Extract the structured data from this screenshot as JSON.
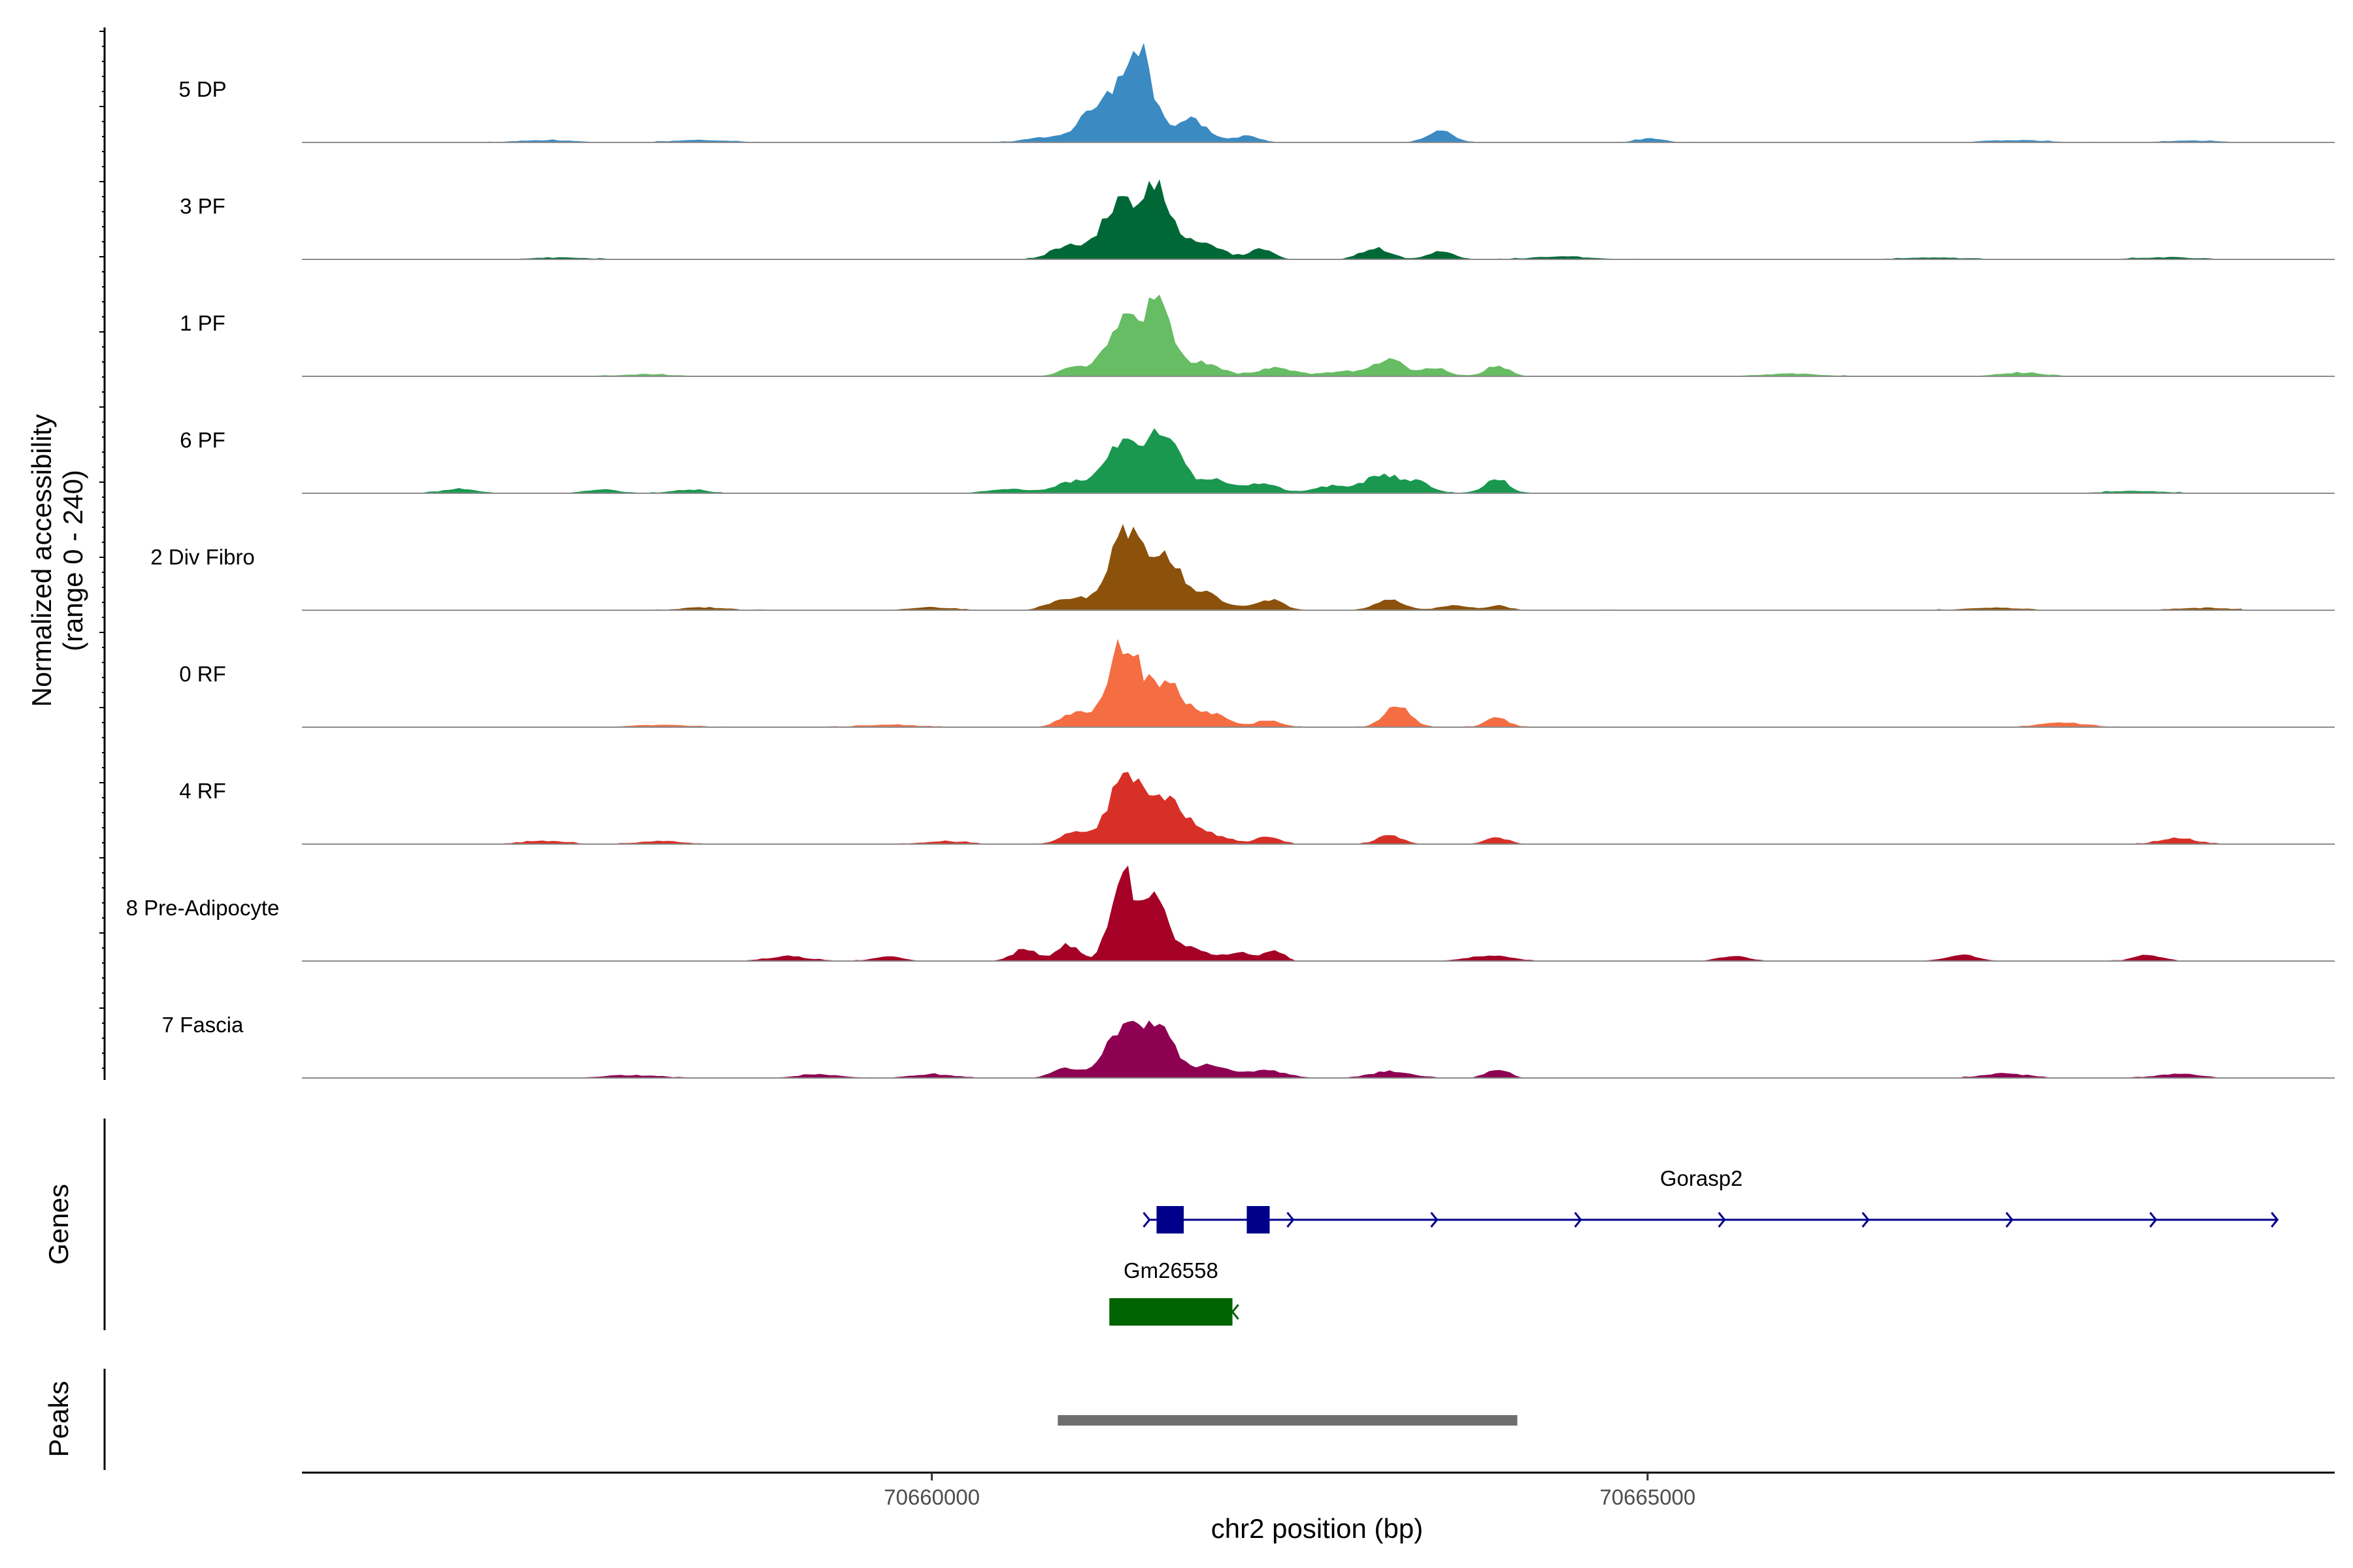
{
  "chart_data": {
    "type": "area",
    "title": "",
    "ylabel": "Normalized accessibility",
    "ylabel_range": "(range 0 - 240)",
    "xlabel": "chr2 position (bp)",
    "xlim": [
      70655600,
      70669800
    ],
    "ylim": [
      0,
      240
    ],
    "x_ticks": [
      {
        "value": 70660000,
        "label": "70660000"
      },
      {
        "value": 70665000,
        "label": "70665000"
      }
    ],
    "tracks": [
      {
        "name": "5 DP",
        "color": "#3B8BC2",
        "peaks": [
          [
            70660800,
            10,
            150
          ],
          [
            70661200,
            90,
            140
          ],
          [
            70661440,
            195,
            100
          ],
          [
            70661800,
            50,
            120
          ],
          [
            70662200,
            14,
            90
          ],
          [
            70663550,
            28,
            90
          ],
          [
            70665020,
            9,
            90
          ],
          [
            70657300,
            5,
            200
          ],
          [
            70658400,
            5,
            200
          ],
          [
            70667600,
            5,
            200
          ],
          [
            70668800,
            4,
            200
          ]
        ]
      },
      {
        "name": "3 PF",
        "color": "#006837",
        "peaks": [
          [
            70660950,
            28,
            120
          ],
          [
            70661300,
            115,
            120
          ],
          [
            70661570,
            155,
            110
          ],
          [
            70661900,
            35,
            130
          ],
          [
            70662300,
            22,
            80
          ],
          [
            70663100,
            25,
            100
          ],
          [
            70663550,
            18,
            90
          ],
          [
            70664400,
            6,
            200
          ],
          [
            70657400,
            4,
            200
          ],
          [
            70667000,
            4,
            200
          ],
          [
            70668600,
            4,
            200
          ]
        ]
      },
      {
        "name": "1 PF",
        "color": "#66BD63",
        "peaks": [
          [
            70661000,
            22,
            100
          ],
          [
            70661330,
            120,
            110
          ],
          [
            70661580,
            150,
            100
          ],
          [
            70661900,
            30,
            120
          ],
          [
            70662400,
            18,
            130
          ],
          [
            70662900,
            12,
            150
          ],
          [
            70663200,
            38,
            90
          ],
          [
            70663500,
            20,
            90
          ],
          [
            70663950,
            24,
            80
          ],
          [
            70666000,
            6,
            200
          ],
          [
            70667600,
            8,
            150
          ],
          [
            70658000,
            4,
            200
          ]
        ]
      },
      {
        "name": "6 PF",
        "color": "#1A9850",
        "peaks": [
          [
            70660550,
            10,
            150
          ],
          [
            70660980,
            25,
            110
          ],
          [
            70661330,
            115,
            120
          ],
          [
            70661620,
            125,
            110
          ],
          [
            70661950,
            30,
            120
          ],
          [
            70662300,
            20,
            120
          ],
          [
            70662800,
            16,
            140
          ],
          [
            70663150,
            38,
            120
          ],
          [
            70663400,
            22,
            100
          ],
          [
            70663950,
            32,
            80
          ],
          [
            70656700,
            10,
            120
          ],
          [
            70657700,
            8,
            120
          ],
          [
            70658300,
            8,
            120
          ],
          [
            70668400,
            5,
            200
          ]
        ]
      },
      {
        "name": "2 Div Fibro",
        "color": "#8C510A",
        "peaks": [
          [
            70660950,
            28,
            120
          ],
          [
            70661350,
            165,
            120
          ],
          [
            70661620,
            110,
            110
          ],
          [
            70661900,
            35,
            130
          ],
          [
            70662350,
            24,
            100
          ],
          [
            70663200,
            22,
            100
          ],
          [
            70663650,
            10,
            100
          ],
          [
            70663950,
            10,
            80
          ],
          [
            70660000,
            6,
            150
          ],
          [
            70658400,
            6,
            150
          ],
          [
            70667400,
            5,
            200
          ],
          [
            70668900,
            5,
            200
          ]
        ]
      },
      {
        "name": "0 RF",
        "color": "#F46D43",
        "peaks": [
          [
            70661000,
            30,
            100
          ],
          [
            70661350,
            185,
            110
          ],
          [
            70661650,
            90,
            110
          ],
          [
            70661950,
            28,
            120
          ],
          [
            70662350,
            15,
            90
          ],
          [
            70663250,
            45,
            90
          ],
          [
            70663950,
            20,
            80
          ],
          [
            70667900,
            10,
            150
          ],
          [
            70658100,
            5,
            200
          ],
          [
            70659700,
            5,
            200
          ]
        ]
      },
      {
        "name": "4 RF",
        "color": "#D73027",
        "peaks": [
          [
            70661000,
            25,
            100
          ],
          [
            70661350,
            150,
            110
          ],
          [
            70661650,
            100,
            120
          ],
          [
            70661950,
            20,
            130
          ],
          [
            70662350,
            18,
            80
          ],
          [
            70663200,
            18,
            90
          ],
          [
            70663950,
            14,
            80
          ],
          [
            70668700,
            14,
            120
          ],
          [
            70657300,
            7,
            150
          ],
          [
            70658100,
            7,
            150
          ],
          [
            70660100,
            6,
            150
          ]
        ]
      },
      {
        "name": "8 Pre-Adipocyte",
        "color": "#A50026",
        "peaks": [
          [
            70660650,
            25,
            90
          ],
          [
            70660950,
            35,
            80
          ],
          [
            70661330,
            205,
            80
          ],
          [
            70661560,
            160,
            80
          ],
          [
            70661800,
            30,
            100
          ],
          [
            70662150,
            20,
            120
          ],
          [
            70662400,
            22,
            60
          ],
          [
            70663900,
            12,
            150
          ],
          [
            70665600,
            12,
            100
          ],
          [
            70667200,
            14,
            100
          ],
          [
            70668500,
            12,
            100
          ],
          [
            70659000,
            10,
            150
          ],
          [
            70659700,
            10,
            100
          ]
        ]
      },
      {
        "name": "7 Fascia",
        "color": "#8E0152",
        "peaks": [
          [
            70660950,
            22,
            100
          ],
          [
            70661350,
            120,
            120
          ],
          [
            70661600,
            105,
            100
          ],
          [
            70661950,
            28,
            130
          ],
          [
            70662350,
            16,
            130
          ],
          [
            70663200,
            14,
            140
          ],
          [
            70663950,
            18,
            80
          ],
          [
            70659200,
            8,
            150
          ],
          [
            70660000,
            8,
            150
          ],
          [
            70657900,
            6,
            200
          ],
          [
            70667500,
            10,
            150
          ],
          [
            70668700,
            9,
            150
          ]
        ]
      }
    ],
    "genes_label": "Genes",
    "genes": [
      {
        "name": "Gorasp2",
        "color": "#00008B",
        "strand": "+",
        "start": 70661520,
        "end": 70669400,
        "exons": [
          [
            70661570,
            70661760
          ],
          [
            70662200,
            70662360
          ]
        ]
      },
      {
        "name": "Gm26558",
        "color": "#006400",
        "strand": "-",
        "start": 70661240,
        "end": 70662100,
        "exons": [
          [
            70661240,
            70662100
          ]
        ]
      }
    ],
    "peaks_label": "Peaks",
    "peak_regions": [
      {
        "start": 70660880,
        "end": 70664090,
        "color": "#6E6E6E"
      }
    ]
  }
}
